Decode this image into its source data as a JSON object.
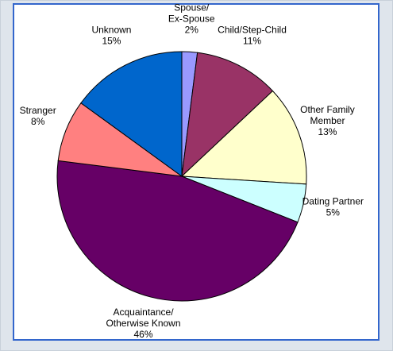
{
  "chart_data": {
    "type": "pie",
    "categories": [
      "Spouse/\nEx-Spouse",
      "Child/Step-Child",
      "Other Family\nMember",
      "Dating Partner",
      "Acquaintance/\nOtherwise Known",
      "Stranger",
      "Unknown"
    ],
    "values": [
      2,
      11,
      13,
      5,
      46,
      8,
      15
    ],
    "value_labels": [
      "2%",
      "11%",
      "13%",
      "5%",
      "46%",
      "8%",
      "15%"
    ],
    "colors": [
      "#9999ff",
      "#993366",
      "#ffffcc",
      "#ccffff",
      "#660066",
      "#ff8080",
      "#0066cc"
    ]
  }
}
